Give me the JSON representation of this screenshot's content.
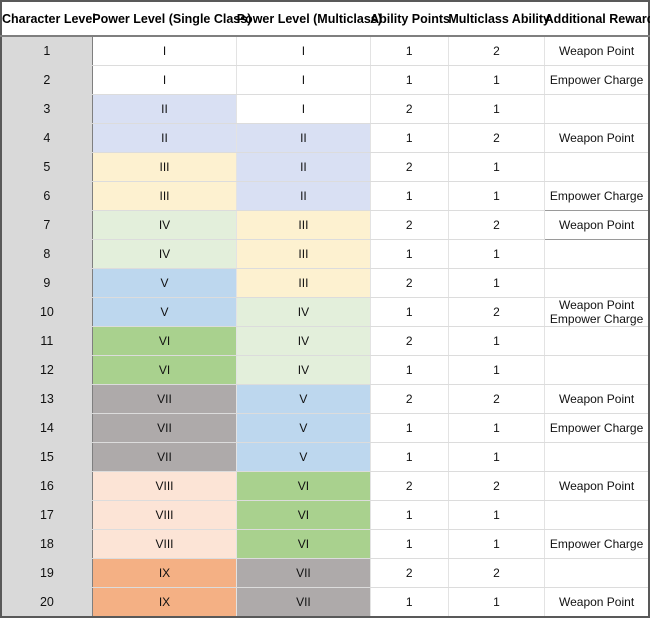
{
  "headers": [
    "Character Level",
    "Power Level (Single Class)",
    "Power Level (Multiclass)",
    "Ability Points",
    "Multiclass Ability",
    "Additional Reward"
  ],
  "rows": [
    {
      "level": "1",
      "single": "I",
      "multi": "I",
      "ap": "1",
      "ma": "2",
      "reward": [
        "Weapon Point"
      ]
    },
    {
      "level": "2",
      "single": "I",
      "multi": "I",
      "ap": "1",
      "ma": "1",
      "reward": [
        "Empower Charge"
      ]
    },
    {
      "level": "3",
      "single": "II",
      "multi": "I",
      "ap": "2",
      "ma": "1",
      "reward": []
    },
    {
      "level": "4",
      "single": "II",
      "multi": "II",
      "ap": "1",
      "ma": "2",
      "reward": [
        "Weapon Point"
      ]
    },
    {
      "level": "5",
      "single": "III",
      "multi": "II",
      "ap": "2",
      "ma": "1",
      "reward": []
    },
    {
      "level": "6",
      "single": "III",
      "multi": "II",
      "ap": "1",
      "ma": "1",
      "reward": [
        "Empower Charge"
      ]
    },
    {
      "level": "7",
      "single": "IV",
      "multi": "III",
      "ap": "2",
      "ma": "2",
      "reward": [
        "Weapon Point"
      ]
    },
    {
      "level": "8",
      "single": "IV",
      "multi": "III",
      "ap": "1",
      "ma": "1",
      "reward": []
    },
    {
      "level": "9",
      "single": "V",
      "multi": "III",
      "ap": "2",
      "ma": "1",
      "reward": []
    },
    {
      "level": "10",
      "single": "V",
      "multi": "IV",
      "ap": "1",
      "ma": "2",
      "reward": [
        "Weapon Point",
        "Empower Charge"
      ]
    },
    {
      "level": "11",
      "single": "VI",
      "multi": "IV",
      "ap": "2",
      "ma": "1",
      "reward": []
    },
    {
      "level": "12",
      "single": "VI",
      "multi": "IV",
      "ap": "1",
      "ma": "1",
      "reward": []
    },
    {
      "level": "13",
      "single": "VII",
      "multi": "V",
      "ap": "2",
      "ma": "2",
      "reward": [
        "Weapon Point"
      ]
    },
    {
      "level": "14",
      "single": "VII",
      "multi": "V",
      "ap": "1",
      "ma": "1",
      "reward": [
        "Empower Charge"
      ]
    },
    {
      "level": "15",
      "single": "VII",
      "multi": "V",
      "ap": "1",
      "ma": "1",
      "reward": []
    },
    {
      "level": "16",
      "single": "VIII",
      "multi": "VI",
      "ap": "2",
      "ma": "2",
      "reward": [
        "Weapon Point"
      ]
    },
    {
      "level": "17",
      "single": "VIII",
      "multi": "VI",
      "ap": "1",
      "ma": "1",
      "reward": []
    },
    {
      "level": "18",
      "single": "VIII",
      "multi": "VI",
      "ap": "1",
      "ma": "1",
      "reward": [
        "Empower Charge"
      ]
    },
    {
      "level": "19",
      "single": "IX",
      "multi": "VII",
      "ap": "2",
      "ma": "2",
      "reward": []
    },
    {
      "level": "20",
      "single": "IX",
      "multi": "VII",
      "ap": "1",
      "ma": "1",
      "reward": [
        "Weapon Point"
      ]
    }
  ],
  "colors": {
    "I": "#ffffff",
    "II": "#d9e0f3",
    "III": "#fdf1d0",
    "IV": "#e3efdb",
    "V": "#bdd7ee",
    "VI": "#a9d18e",
    "VII": "#aeaaaa",
    "VIII": "#fce4d6",
    "IX": "#f4b084"
  }
}
